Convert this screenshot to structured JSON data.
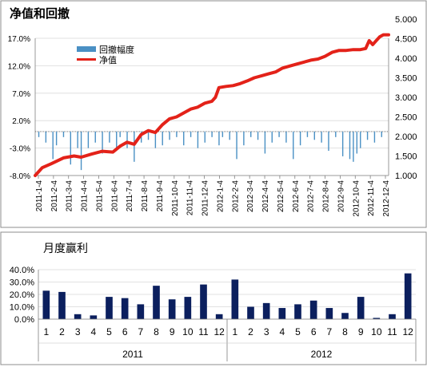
{
  "chart_data": [
    {
      "type": "line",
      "title": "净值和回撤",
      "legend_position": "top-left",
      "series": [
        {
          "name": "回撤幅度",
          "type": "bar",
          "axis": "left",
          "color": "#4a90c4"
        },
        {
          "name": "净值",
          "type": "line",
          "axis": "right",
          "color": "#e32219"
        }
      ],
      "y_left_ticks": [
        "17.0%",
        "12.0%",
        "7.0%",
        "2.0%",
        "-3.0%",
        "-8.0%"
      ],
      "y_left_range": [
        -8.0,
        17.0
      ],
      "y_right_ticks": [
        "5.000",
        "4.500",
        "4.000",
        "3.500",
        "3.000",
        "2.500",
        "2.000",
        "1.500",
        "1.000"
      ],
      "y_right_range": [
        1.0,
        5.0
      ],
      "x_tick_labels": [
        "2011-1-4",
        "2011-2-4",
        "2011-3-4",
        "2011-4-4",
        "2011-5-4",
        "2011-6-4",
        "2011-7-4",
        "2011-8-4",
        "2011-9-4",
        "2011-10-4",
        "2011-11-4",
        "2011-12-4",
        "2012-1-4",
        "2012-2-4",
        "2012-3-4",
        "2012-4-4",
        "2012-5-4",
        "2012-6-4",
        "2012-7-4",
        "2012-8-4",
        "2012-9-4",
        "2012-10-4",
        "2012-11-4",
        "2012-12-4"
      ],
      "nav_points": [
        [
          0.0,
          1.0
        ],
        [
          0.02,
          1.2
        ],
        [
          0.045,
          1.3
        ],
        [
          0.08,
          1.45
        ],
        [
          0.11,
          1.5
        ],
        [
          0.13,
          1.47
        ],
        [
          0.16,
          1.55
        ],
        [
          0.19,
          1.62
        ],
        [
          0.22,
          1.6
        ],
        [
          0.24,
          1.75
        ],
        [
          0.26,
          1.85
        ],
        [
          0.28,
          1.8
        ],
        [
          0.3,
          2.05
        ],
        [
          0.32,
          2.15
        ],
        [
          0.34,
          2.1
        ],
        [
          0.36,
          2.3
        ],
        [
          0.38,
          2.45
        ],
        [
          0.4,
          2.5
        ],
        [
          0.42,
          2.6
        ],
        [
          0.44,
          2.7
        ],
        [
          0.46,
          2.75
        ],
        [
          0.48,
          2.85
        ],
        [
          0.5,
          2.9
        ],
        [
          0.51,
          3.0
        ],
        [
          0.52,
          3.25
        ],
        [
          0.54,
          3.28
        ],
        [
          0.56,
          3.3
        ],
        [
          0.58,
          3.35
        ],
        [
          0.6,
          3.42
        ],
        [
          0.62,
          3.5
        ],
        [
          0.64,
          3.55
        ],
        [
          0.66,
          3.6
        ],
        [
          0.68,
          3.65
        ],
        [
          0.7,
          3.75
        ],
        [
          0.72,
          3.8
        ],
        [
          0.74,
          3.85
        ],
        [
          0.76,
          3.9
        ],
        [
          0.78,
          3.95
        ],
        [
          0.8,
          3.98
        ],
        [
          0.82,
          4.05
        ],
        [
          0.84,
          4.15
        ],
        [
          0.86,
          4.2
        ],
        [
          0.88,
          4.2
        ],
        [
          0.9,
          4.22
        ],
        [
          0.92,
          4.22
        ],
        [
          0.935,
          4.25
        ],
        [
          0.945,
          4.45
        ],
        [
          0.955,
          4.35
        ],
        [
          0.965,
          4.45
        ],
        [
          0.975,
          4.55
        ],
        [
          0.985,
          4.6
        ],
        [
          1.0,
          4.6
        ]
      ],
      "drawdown_points": [
        [
          0.01,
          -1.0
        ],
        [
          0.03,
          -2.0
        ],
        [
          0.05,
          -5.0
        ],
        [
          0.06,
          -2.5
        ],
        [
          0.08,
          -1.0
        ],
        [
          0.1,
          -6.0
        ],
        [
          0.12,
          -3.0
        ],
        [
          0.13,
          -7.0
        ],
        [
          0.15,
          -3.0
        ],
        [
          0.17,
          -2.0
        ],
        [
          0.19,
          -4.0
        ],
        [
          0.21,
          -2.0
        ],
        [
          0.23,
          -3.0
        ],
        [
          0.24,
          -1.0
        ],
        [
          0.26,
          -3.0
        ],
        [
          0.28,
          -5.5
        ],
        [
          0.3,
          -2.0
        ],
        [
          0.32,
          -1.5
        ],
        [
          0.34,
          -3.0
        ],
        [
          0.36,
          -2.5
        ],
        [
          0.38,
          -1.5
        ],
        [
          0.4,
          -1.0
        ],
        [
          0.42,
          -2.5
        ],
        [
          0.44,
          -1.0
        ],
        [
          0.46,
          -3.0
        ],
        [
          0.48,
          -2.0
        ],
        [
          0.5,
          -1.0
        ],
        [
          0.52,
          -2.5
        ],
        [
          0.53,
          -1.0
        ],
        [
          0.55,
          -1.5
        ],
        [
          0.57,
          -5.0
        ],
        [
          0.59,
          -2.5
        ],
        [
          0.61,
          -1.0
        ],
        [
          0.63,
          -1.5
        ],
        [
          0.65,
          -4.0
        ],
        [
          0.67,
          -2.0
        ],
        [
          0.69,
          -1.0
        ],
        [
          0.71,
          -2.0
        ],
        [
          0.73,
          -5.0
        ],
        [
          0.75,
          -2.5
        ],
        [
          0.77,
          -1.0
        ],
        [
          0.79,
          -1.5
        ],
        [
          0.81,
          -2.0
        ],
        [
          0.83,
          -3.5
        ],
        [
          0.85,
          -1.0
        ],
        [
          0.87,
          -4.5
        ],
        [
          0.89,
          -5.0
        ],
        [
          0.9,
          -5.5
        ],
        [
          0.91,
          -4.0
        ],
        [
          0.92,
          -3.0
        ],
        [
          0.94,
          -1.5
        ],
        [
          0.96,
          -2.0
        ],
        [
          0.98,
          -1.0
        ]
      ]
    },
    {
      "type": "bar",
      "title": "月度赢利",
      "color": "#0b1f5e",
      "y_ticks": [
        "40.0%",
        "30.0%",
        "20.0%",
        "10.0%",
        "0.0%"
      ],
      "ylim": [
        0,
        40
      ],
      "categories": [
        "1",
        "2",
        "3",
        "4",
        "5",
        "6",
        "7",
        "8",
        "9",
        "10",
        "11",
        "12",
        "1",
        "2",
        "3",
        "4",
        "5",
        "6",
        "7",
        "8",
        "9",
        "10",
        "11",
        "12"
      ],
      "groups": [
        {
          "label": "2011",
          "start": 0,
          "count": 12
        },
        {
          "label": "2012",
          "start": 12,
          "count": 12
        }
      ],
      "values": [
        23,
        22,
        4,
        3,
        18,
        17,
        12,
        27,
        16,
        18,
        28,
        4,
        32,
        10,
        13,
        9,
        12,
        15,
        9,
        5,
        18,
        1,
        4,
        37
      ]
    }
  ]
}
